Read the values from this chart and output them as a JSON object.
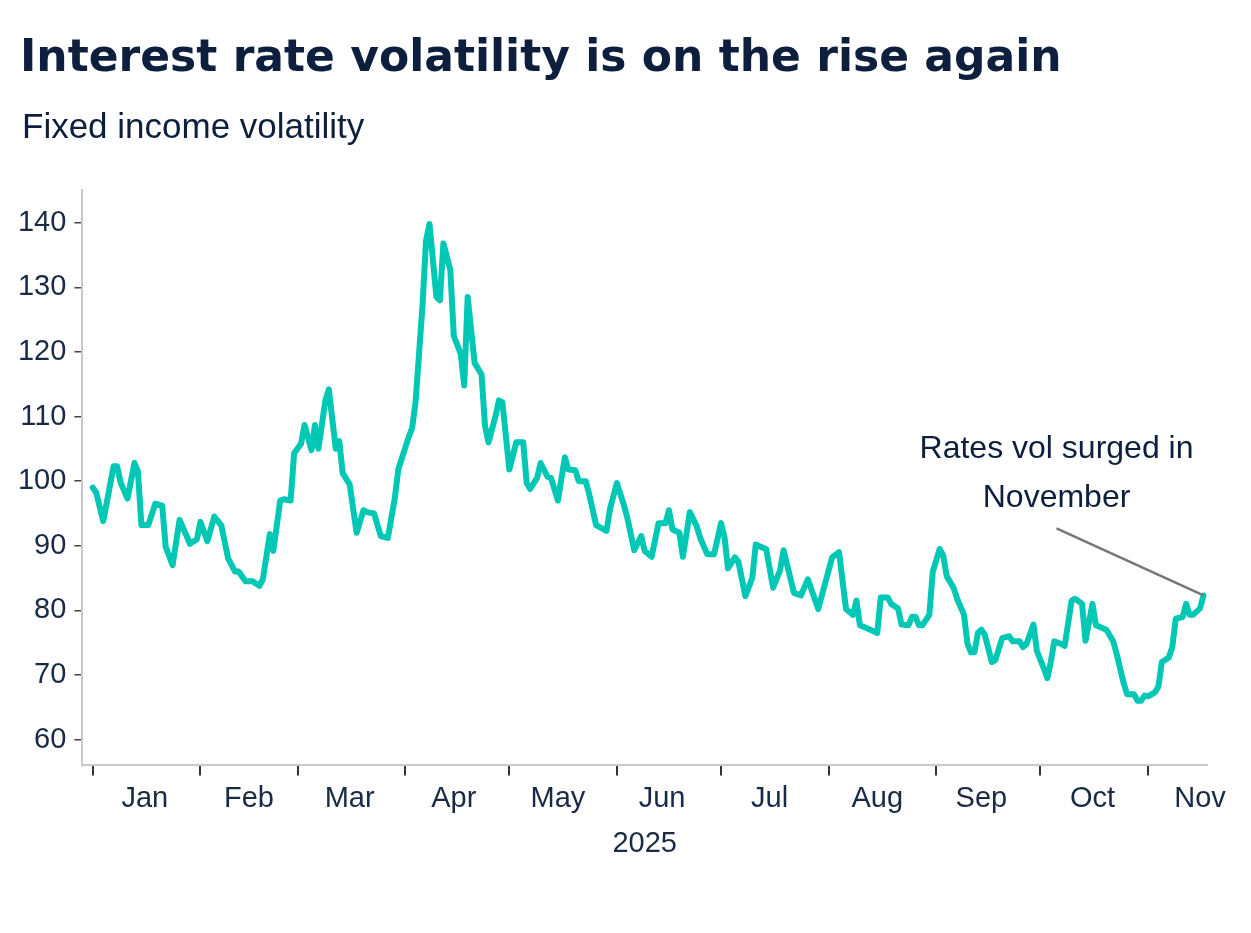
{
  "chart_data": {
    "type": "line",
    "title": "Interest rate volatility is on the rise again",
    "subtitle": "Fixed income volatility",
    "xlabel": "2025",
    "x": [
      "2025-01-01",
      "2025-01-02",
      "2025-01-04",
      "2025-01-07",
      "2025-01-08",
      "2025-01-09",
      "2025-01-11",
      "2025-01-13",
      "2025-01-14",
      "2025-01-15",
      "2025-01-17",
      "2025-01-19",
      "2025-01-21",
      "2025-01-22",
      "2025-01-24",
      "2025-01-26",
      "2025-01-29",
      "2025-01-31",
      "2025-02-01",
      "2025-02-03",
      "2025-02-05",
      "2025-02-07",
      "2025-02-09",
      "2025-02-11",
      "2025-02-12",
      "2025-02-14",
      "2025-02-16",
      "2025-02-18",
      "2025-02-19",
      "2025-02-21",
      "2025-02-22",
      "2025-02-24",
      "2025-02-25",
      "2025-02-27",
      "2025-02-28",
      "2025-03-02",
      "2025-03-03",
      "2025-03-05",
      "2025-03-06",
      "2025-03-07",
      "2025-03-09",
      "2025-03-10",
      "2025-03-12",
      "2025-03-13",
      "2025-03-14",
      "2025-03-16",
      "2025-03-18",
      "2025-03-20",
      "2025-03-21",
      "2025-03-23",
      "2025-03-25",
      "2025-03-27",
      "2025-03-29",
      "2025-03-30",
      "2025-04-02",
      "2025-04-03",
      "2025-04-04",
      "2025-04-06",
      "2025-04-07",
      "2025-04-08",
      "2025-04-10",
      "2025-04-11",
      "2025-04-12",
      "2025-04-14",
      "2025-04-15",
      "2025-04-17",
      "2025-04-18",
      "2025-04-19",
      "2025-04-21",
      "2025-04-23",
      "2025-04-24",
      "2025-04-25",
      "2025-04-27",
      "2025-04-28",
      "2025-04-29",
      "2025-05-01",
      "2025-05-03",
      "2025-05-05",
      "2025-05-06",
      "2025-05-07",
      "2025-05-09",
      "2025-05-10",
      "2025-05-12",
      "2025-05-13",
      "2025-05-15",
      "2025-05-17",
      "2025-05-18",
      "2025-05-20",
      "2025-05-21",
      "2025-05-23",
      "2025-05-24",
      "2025-05-26",
      "2025-05-29",
      "2025-05-30",
      "2025-06-01",
      "2025-06-03",
      "2025-06-04",
      "2025-06-06",
      "2025-06-08",
      "2025-06-09",
      "2025-06-11",
      "2025-06-13",
      "2025-06-15",
      "2025-06-16",
      "2025-06-17",
      "2025-06-19",
      "2025-06-20",
      "2025-06-22",
      "2025-06-24",
      "2025-06-25",
      "2025-06-27",
      "2025-06-29",
      "2025-07-01",
      "2025-07-02",
      "2025-07-03",
      "2025-07-05",
      "2025-07-06",
      "2025-07-08",
      "2025-07-10",
      "2025-07-11",
      "2025-07-13",
      "2025-07-14",
      "2025-07-16",
      "2025-07-18",
      "2025-07-19",
      "2025-07-22",
      "2025-07-24",
      "2025-07-26",
      "2025-07-29",
      "2025-08-02",
      "2025-08-04",
      "2025-08-06",
      "2025-08-08",
      "2025-08-09",
      "2025-08-10",
      "2025-08-13",
      "2025-08-15",
      "2025-08-16",
      "2025-08-18",
      "2025-08-19",
      "2025-08-21",
      "2025-08-22",
      "2025-08-24",
      "2025-08-25",
      "2025-08-26",
      "2025-08-27",
      "2025-08-28",
      "2025-08-30",
      "2025-08-31",
      "2025-09-02",
      "2025-09-03",
      "2025-09-04",
      "2025-09-06",
      "2025-09-07",
      "2025-09-09",
      "2025-09-10",
      "2025-09-11",
      "2025-09-12",
      "2025-09-13",
      "2025-09-14",
      "2025-09-15",
      "2025-09-17",
      "2025-09-18",
      "2025-09-20",
      "2025-09-22",
      "2025-09-23",
      "2025-09-25",
      "2025-09-26",
      "2025-09-27",
      "2025-09-29",
      "2025-09-30",
      "2025-10-02",
      "2025-10-03",
      "2025-10-04",
      "2025-10-05",
      "2025-10-07",
      "2025-10-08",
      "2025-10-10",
      "2025-10-11",
      "2025-10-13",
      "2025-10-14",
      "2025-10-16",
      "2025-10-17",
      "2025-10-20",
      "2025-10-22",
      "2025-10-23",
      "2025-10-25",
      "2025-10-26",
      "2025-10-28",
      "2025-10-29",
      "2025-10-30",
      "2025-10-31",
      "2025-11-01",
      "2025-11-03",
      "2025-11-04",
      "2025-11-05",
      "2025-11-07",
      "2025-11-08",
      "2025-11-09",
      "2025-11-11",
      "2025-11-12",
      "2025-11-13",
      "2025-11-14",
      "2025-11-16",
      "2025-11-17"
    ],
    "series": [
      {
        "color": "#00c8b4",
        "values": [
          99.0,
          98.2,
          93.8,
          102.3,
          102.3,
          99.8,
          97.3,
          102.8,
          101.5,
          93.2,
          93.2,
          96.5,
          96.2,
          89.8,
          87,
          94,
          90.3,
          91,
          93.7,
          90.7,
          94.5,
          93.2,
          88,
          86,
          86,
          84.5,
          84.5,
          83.8,
          84.8,
          91.8,
          89.2,
          97,
          97.2,
          97,
          104.3,
          105.8,
          108.7,
          104.8,
          108.7,
          105,
          112.5,
          114.2,
          105,
          106.2,
          101.2,
          99.5,
          92,
          95.5,
          95.2,
          95,
          91.5,
          91.2,
          97.3,
          101.8,
          106.8,
          108.2,
          112.3,
          127.3,
          137.2,
          139.8,
          128.5,
          128,
          136.8,
          132.7,
          122.5,
          119.7,
          114.8,
          128.5,
          118.3,
          116.5,
          108.5,
          106,
          110,
          112.5,
          112.2,
          101.8,
          106,
          106,
          99.7,
          98.8,
          100.5,
          102.8,
          100.7,
          100.5,
          97,
          103.7,
          101.8,
          101.7,
          100,
          100,
          98,
          93.2,
          92.3,
          95.7,
          99.7,
          96.3,
          94.3,
          89.3,
          91.5,
          89.2,
          88.3,
          93.5,
          93.5,
          95.5,
          92.5,
          92,
          88.3,
          95.2,
          93,
          91.2,
          88.7,
          88.7,
          93.5,
          91.3,
          86.5,
          88.2,
          87.5,
          82.2,
          85,
          90.2,
          89.7,
          89.5,
          83.5,
          86.2,
          89.3,
          82.7,
          82.3,
          84.8,
          80.2,
          88.2,
          89,
          80.2,
          79.3,
          81.5,
          77.7,
          77,
          76.5,
          82,
          82,
          81,
          80.3,
          77.8,
          77.7,
          79,
          79,
          77.7,
          77.7,
          79.3,
          86,
          89.5,
          88.5,
          85.3,
          83.5,
          81.8,
          79.3,
          74.8,
          73.5,
          73.5,
          76.5,
          77,
          76.2,
          72,
          72.3,
          75.7,
          76,
          75.2,
          75.2,
          74.3,
          74.8,
          77.8,
          73.7,
          71,
          69.5,
          72,
          75.2,
          74.8,
          74.5,
          81.5,
          81.8,
          81,
          75.3,
          81,
          77.7,
          77,
          75.2,
          73.2,
          68.7,
          67,
          67,
          66,
          66,
          66.8,
          66.7,
          67.3,
          68.2,
          72,
          72.7,
          74.3,
          78.7,
          79,
          81,
          79.3,
          79.3,
          80.3,
          82.3
        ]
      }
    ],
    "xlim": [
      "2024-12-29",
      "2025-11-18"
    ],
    "xticks": [
      {
        "value": "2025-01-01",
        "label": null
      },
      {
        "value": "2025-01-16",
        "label": "Jan"
      },
      {
        "value": "2025-02-01",
        "label": null
      },
      {
        "value": "2025-02-15",
        "label": "Feb"
      },
      {
        "value": "2025-03-01",
        "label": null
      },
      {
        "value": "2025-03-16",
        "label": "Mar"
      },
      {
        "value": "2025-04-01",
        "label": null
      },
      {
        "value": "2025-04-15",
        "label": "Apr"
      },
      {
        "value": "2025-05-01",
        "label": null
      },
      {
        "value": "2025-05-15",
        "label": "May"
      },
      {
        "value": "2025-06-01",
        "label": null
      },
      {
        "value": "2025-06-14",
        "label": "Jun"
      },
      {
        "value": "2025-07-01",
        "label": null
      },
      {
        "value": "2025-07-15",
        "label": "Jul"
      },
      {
        "value": "2025-08-01",
        "label": null
      },
      {
        "value": "2025-08-15",
        "label": "Aug"
      },
      {
        "value": "2025-09-01",
        "label": null
      },
      {
        "value": "2025-09-14",
        "label": "Sep"
      },
      {
        "value": "2025-10-01",
        "label": null
      },
      {
        "value": "2025-10-16",
        "label": "Oct"
      },
      {
        "value": "2025-11-01",
        "label": null
      },
      {
        "value": "2025-11-16",
        "label": "Nov"
      }
    ],
    "ylim": [
      56,
      145
    ],
    "yticks": [
      60,
      70,
      80,
      90,
      100,
      110,
      120,
      130,
      140
    ],
    "grid": false,
    "legend": false,
    "marker": "none",
    "line_style": "solid",
    "annotations": [
      {
        "text": "Rates vol surged in November",
        "x": "2025-11-17",
        "y": 82.3
      }
    ]
  }
}
